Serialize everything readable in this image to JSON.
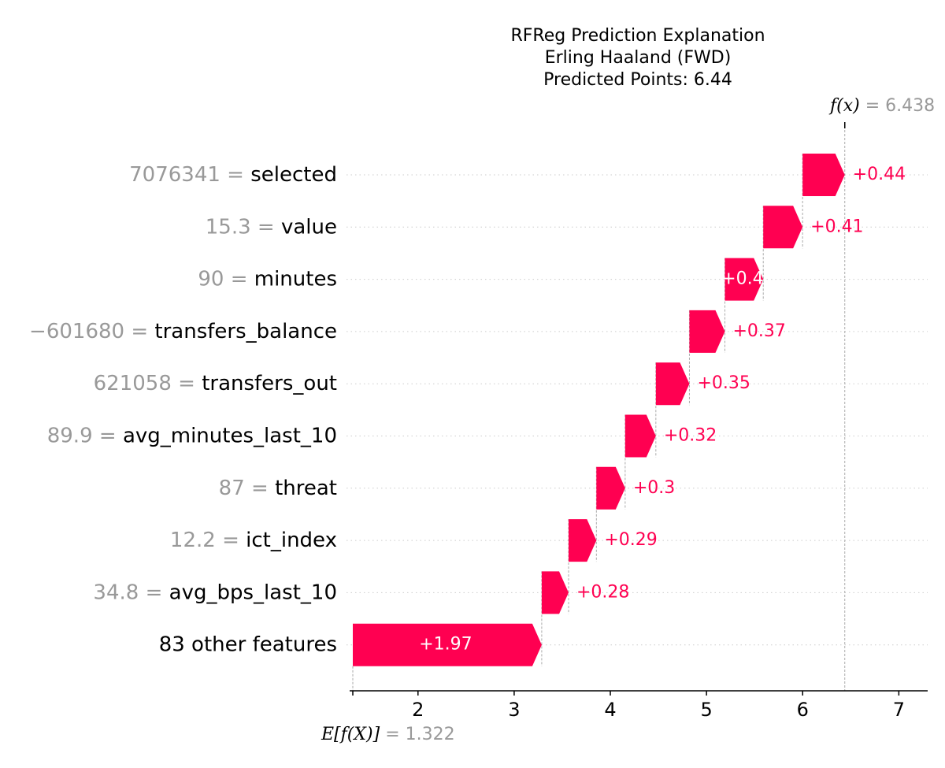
{
  "chart_data": {
    "type": "waterfall",
    "title_lines": [
      "RFReg Prediction Explanation",
      "Erling Haaland (FWD)",
      "Predicted Points: 6.44"
    ],
    "base_value": 1.322,
    "base_label": "E[f(X)]",
    "base_value_text": "= 1.322",
    "output_value": 6.438,
    "output_label": "f(x)",
    "output_value_text": "= 6.438",
    "xlim": [
      1.322,
      7.3
    ],
    "xticks": [
      2,
      3,
      4,
      5,
      6,
      7
    ],
    "xtick_labels": [
      "2",
      "3",
      "4",
      "5",
      "6",
      "7"
    ],
    "positive_color": "#ff0051",
    "features": [
      {
        "value_text": "7076341",
        "name": "selected",
        "contribution": 0.44,
        "label": "+0.44",
        "label_inside": false
      },
      {
        "value_text": "15.3",
        "name": "value",
        "contribution": 0.41,
        "label": "+0.41",
        "label_inside": false
      },
      {
        "value_text": "90",
        "name": "minutes",
        "contribution": 0.4,
        "label": "+0.4",
        "label_inside": true
      },
      {
        "value_text": "−601680",
        "name": "transfers_balance",
        "contribution": 0.37,
        "label": "+0.37",
        "label_inside": false
      },
      {
        "value_text": "621058",
        "name": "transfers_out",
        "contribution": 0.35,
        "label": "+0.35",
        "label_inside": false
      },
      {
        "value_text": "89.9",
        "name": "avg_minutes_last_10",
        "contribution": 0.32,
        "label": "+0.32",
        "label_inside": false
      },
      {
        "value_text": "87",
        "name": "threat",
        "contribution": 0.3,
        "label": "+0.3",
        "label_inside": false
      },
      {
        "value_text": "12.2",
        "name": "ict_index",
        "contribution": 0.29,
        "label": "+0.29",
        "label_inside": false
      },
      {
        "value_text": "34.8",
        "name": "avg_bps_last_10",
        "contribution": 0.28,
        "label": "+0.28",
        "label_inside": false
      },
      {
        "value_text": "",
        "name": "83 other features",
        "contribution": 1.97,
        "label": "+1.97",
        "label_inside": true
      }
    ]
  }
}
